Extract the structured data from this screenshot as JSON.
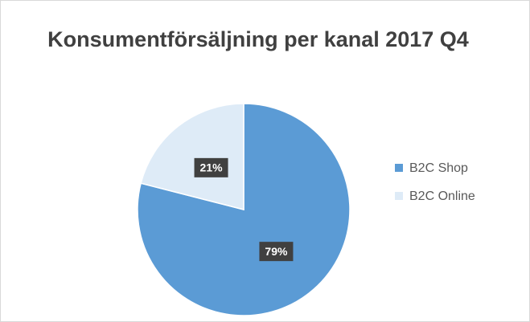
{
  "chart_data": {
    "type": "pie",
    "title": "Konsumentförsäljning per kanal 2017 Q4",
    "categories": [
      "B2C Shop",
      "B2C Online"
    ],
    "values": [
      79,
      21
    ],
    "value_labels": [
      "79%",
      "21%"
    ],
    "colors": [
      "#5b9bd5",
      "#deebf7"
    ],
    "legend": "right"
  }
}
